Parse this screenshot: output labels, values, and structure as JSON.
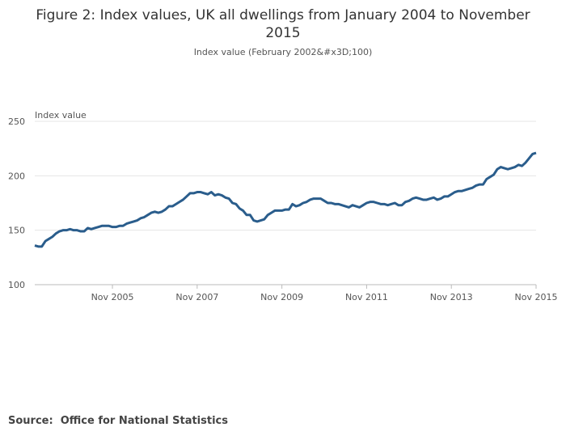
{
  "chart_data": {
    "type": "line",
    "title": "Figure 2: Index values, UK all dwellings from January 2004 to November 2015",
    "subtitle": "Index value (February 2002&#x3D;100)",
    "y_label": "Index value",
    "source": "Source:  Office for National Statistics",
    "x": [
      "Jan 2004",
      "Feb 2004",
      "Mar 2004",
      "Apr 2004",
      "May 2004",
      "Jun 2004",
      "Jul 2004",
      "Aug 2004",
      "Sep 2004",
      "Oct 2004",
      "Nov 2004",
      "Dec 2004",
      "Jan 2005",
      "Feb 2005",
      "Mar 2005",
      "Apr 2005",
      "May 2005",
      "Jun 2005",
      "Jul 2005",
      "Aug 2005",
      "Sep 2005",
      "Oct 2005",
      "Nov 2005",
      "Dec 2005",
      "Jan 2006",
      "Feb 2006",
      "Mar 2006",
      "Apr 2006",
      "May 2006",
      "Jun 2006",
      "Jul 2006",
      "Aug 2006",
      "Sep 2006",
      "Oct 2006",
      "Nov 2006",
      "Dec 2006",
      "Jan 2007",
      "Feb 2007",
      "Mar 2007",
      "Apr 2007",
      "May 2007",
      "Jun 2007",
      "Jul 2007",
      "Aug 2007",
      "Sep 2007",
      "Oct 2007",
      "Nov 2007",
      "Dec 2007",
      "Jan 2008",
      "Feb 2008",
      "Mar 2008",
      "Apr 2008",
      "May 2008",
      "Jun 2008",
      "Jul 2008",
      "Aug 2008",
      "Sep 2008",
      "Oct 2008",
      "Nov 2008",
      "Dec 2008",
      "Jan 2009",
      "Feb 2009",
      "Mar 2009",
      "Apr 2009",
      "May 2009",
      "Jun 2009",
      "Jul 2009",
      "Aug 2009",
      "Sep 2009",
      "Oct 2009",
      "Nov 2009",
      "Dec 2009",
      "Jan 2010",
      "Feb 2010",
      "Mar 2010",
      "Apr 2010",
      "May 2010",
      "Jun 2010",
      "Jul 2010",
      "Aug 2010",
      "Sep 2010",
      "Oct 2010",
      "Nov 2010",
      "Dec 2010",
      "Jan 2011",
      "Feb 2011",
      "Mar 2011",
      "Apr 2011",
      "May 2011",
      "Jun 2011",
      "Jul 2011",
      "Aug 2011",
      "Sep 2011",
      "Oct 2011",
      "Nov 2011",
      "Dec 2011",
      "Jan 2012",
      "Feb 2012",
      "Mar 2012",
      "Apr 2012",
      "May 2012",
      "Jun 2012",
      "Jul 2012",
      "Aug 2012",
      "Sep 2012",
      "Oct 2012",
      "Nov 2012",
      "Dec 2012",
      "Jan 2013",
      "Feb 2013",
      "Mar 2013",
      "Apr 2013",
      "May 2013",
      "Jun 2013",
      "Jul 2013",
      "Aug 2013",
      "Sep 2013",
      "Oct 2013",
      "Nov 2013",
      "Dec 2013",
      "Jan 2014",
      "Feb 2014",
      "Mar 2014",
      "Apr 2014",
      "May 2014",
      "Jun 2014",
      "Jul 2014",
      "Aug 2014",
      "Sep 2014",
      "Oct 2014",
      "Nov 2014",
      "Dec 2014",
      "Jan 2015",
      "Feb 2015",
      "Mar 2015",
      "Apr 2015",
      "May 2015",
      "Jun 2015",
      "Jul 2015",
      "Aug 2015",
      "Sep 2015",
      "Oct 2015",
      "Nov 2015"
    ],
    "series": [
      {
        "name": "Index value",
        "color": "#2a5d8c",
        "values": [
          136,
          135,
          135,
          140,
          142,
          144,
          147,
          149,
          150,
          150,
          151,
          150,
          150,
          149,
          149,
          152,
          151,
          152,
          153,
          154,
          154,
          154,
          153,
          153,
          154,
          154,
          156,
          157,
          158,
          159,
          161,
          162,
          164,
          166,
          167,
          166,
          167,
          169,
          172,
          172,
          174,
          176,
          178,
          181,
          184,
          184,
          185,
          185,
          184,
          183,
          185,
          182,
          183,
          182,
          180,
          179,
          175,
          174,
          170,
          168,
          164,
          164,
          159,
          158,
          159,
          160,
          164,
          166,
          168,
          168,
          168,
          169,
          169,
          174,
          172,
          173,
          175,
          176,
          178,
          179,
          179,
          179,
          177,
          175,
          175,
          174,
          174,
          173,
          172,
          171,
          173,
          172,
          171,
          173,
          175,
          176,
          176,
          175,
          174,
          174,
          173,
          174,
          175,
          173,
          173,
          176,
          177,
          179,
          180,
          179,
          178,
          178,
          179,
          180,
          178,
          179,
          181,
          181,
          183,
          185,
          186,
          186,
          187,
          188,
          189,
          191,
          192,
          192,
          197,
          199,
          201,
          206,
          208,
          207,
          206,
          207,
          208,
          210,
          209,
          212,
          216,
          220,
          221
        ]
      }
    ],
    "xticks": [
      "Nov 2005",
      "Nov 2007",
      "Nov 2009",
      "Nov 2011",
      "Nov 2013",
      "Nov 2015"
    ],
    "ylim": [
      100,
      250
    ],
    "yticks": [
      100,
      150,
      200,
      250
    ],
    "grid": true
  }
}
